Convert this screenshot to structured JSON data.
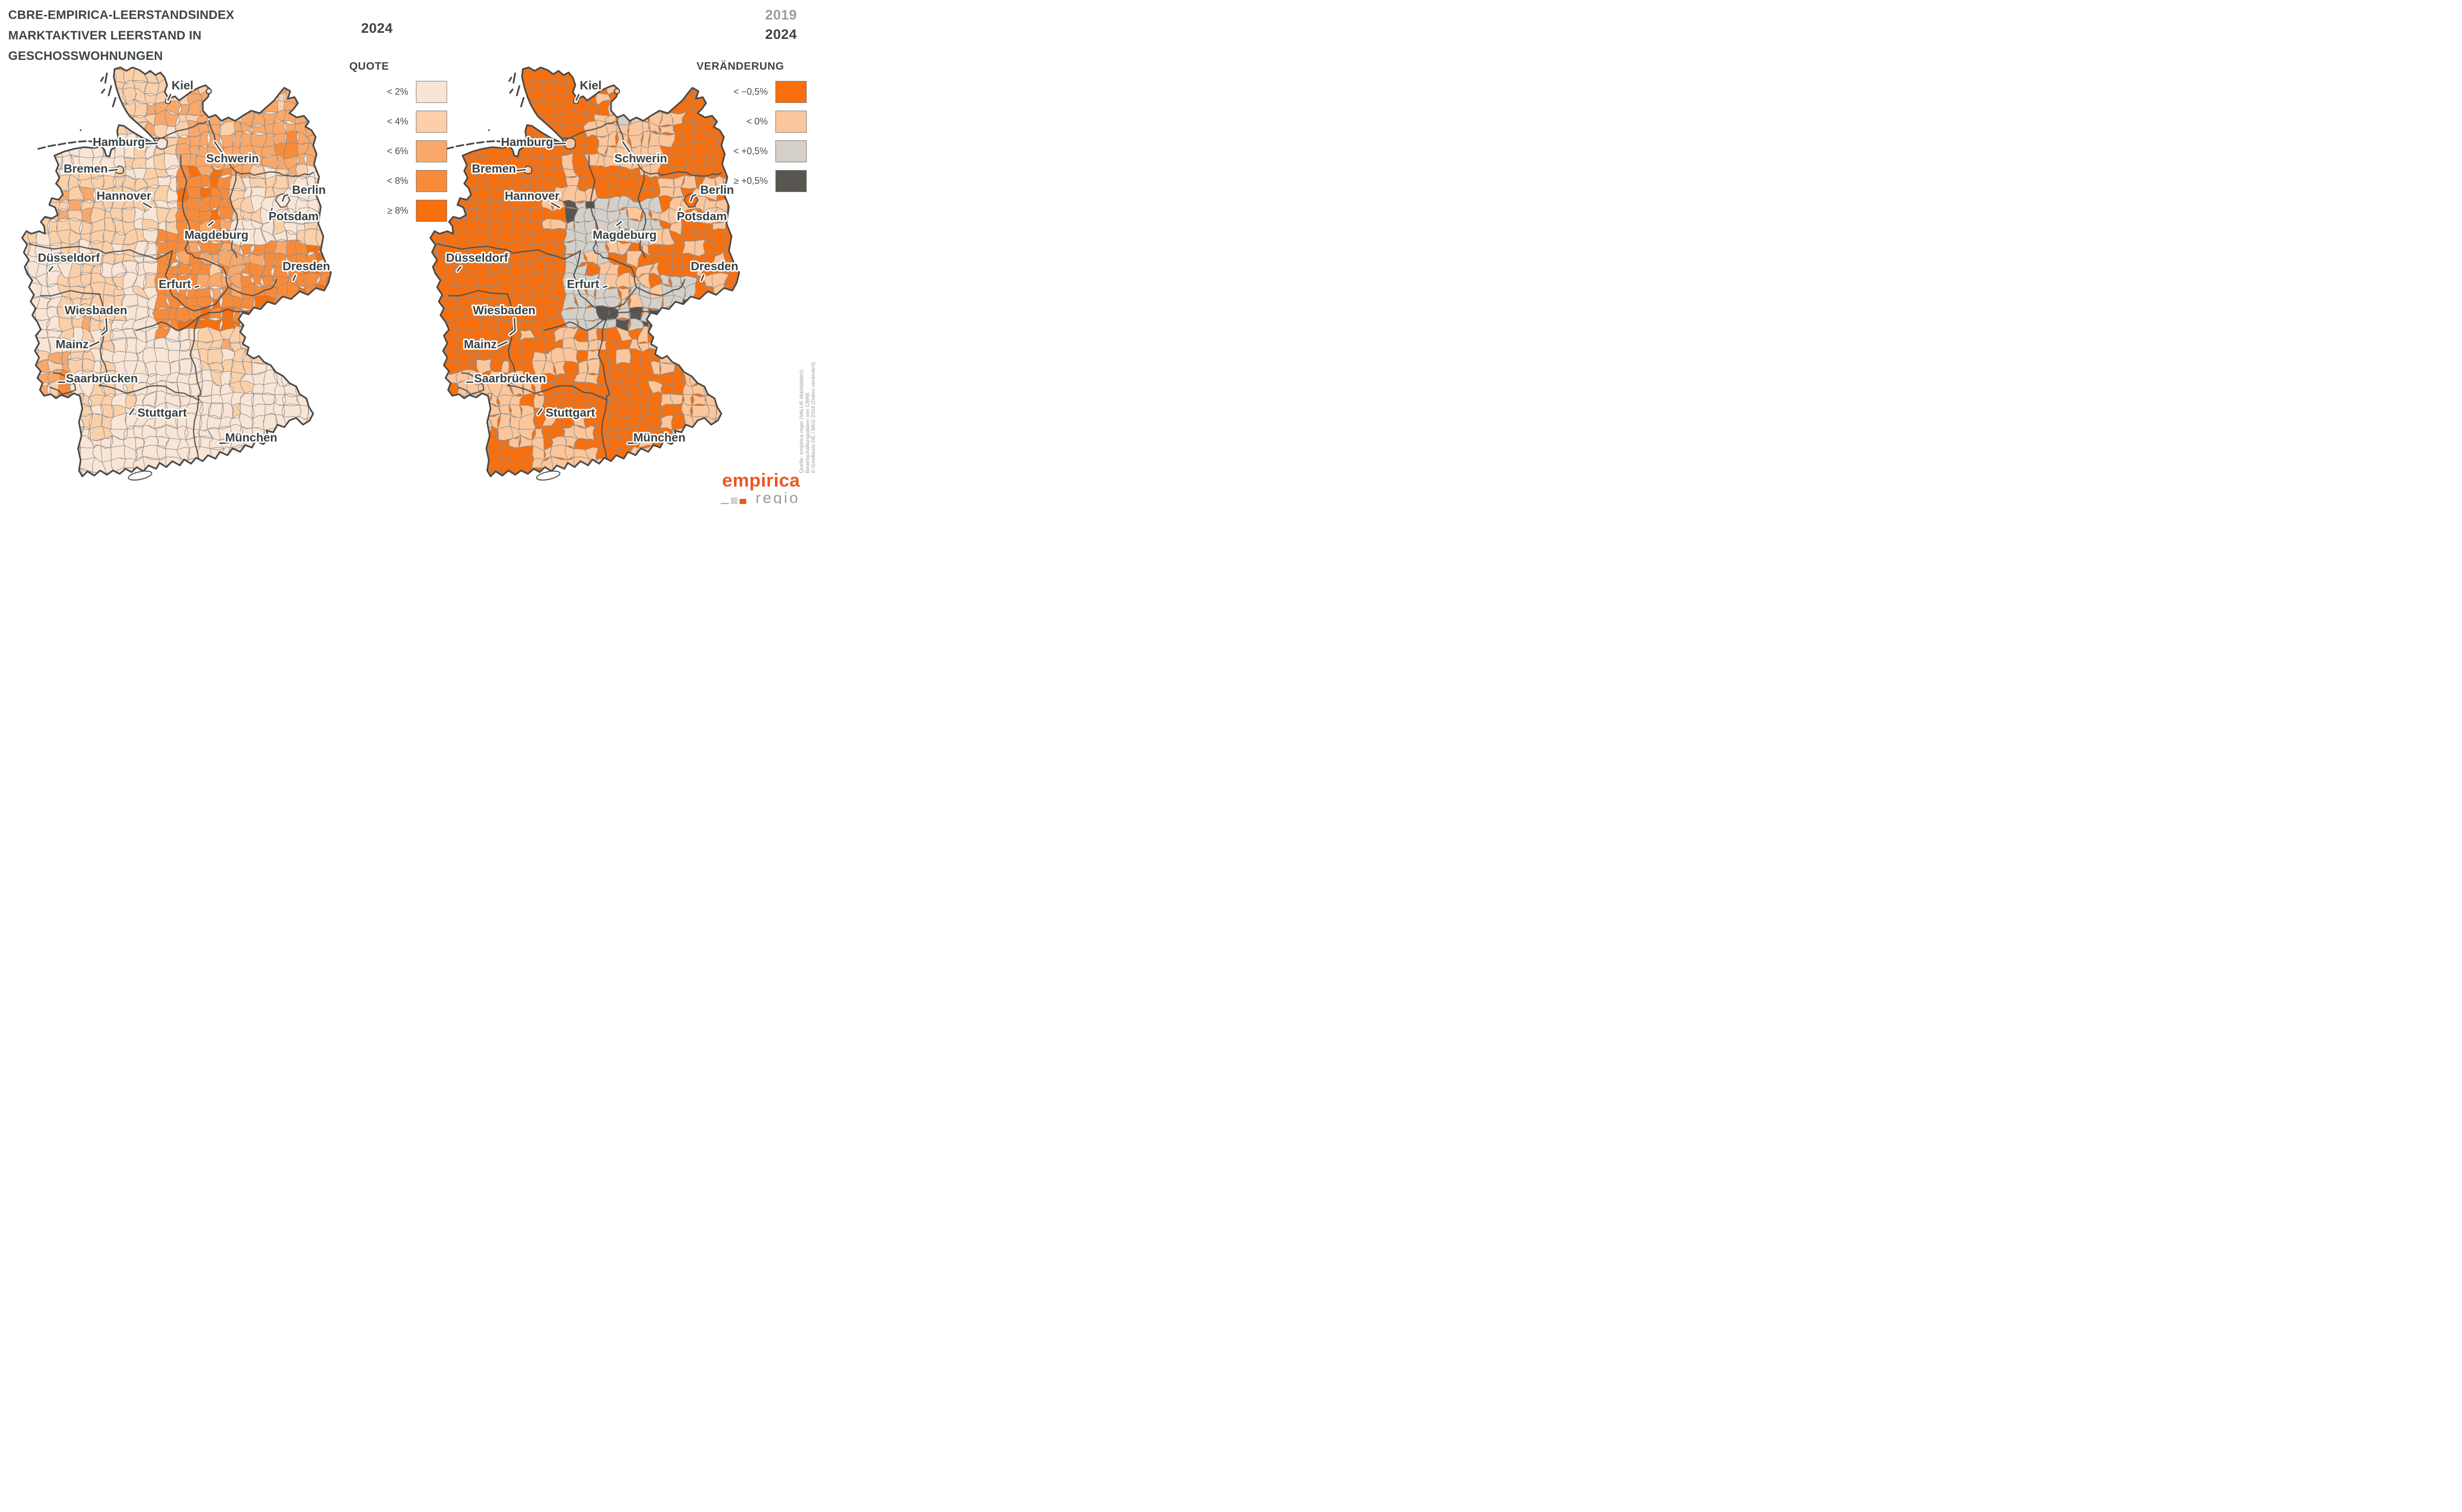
{
  "title": {
    "line1": "CBRE-EMPIRICA-LEERSTANDSINDEX",
    "line2": "MARKTAKTIVER LEERSTAND IN",
    "line3": "GESCHOSSWOHNUNGEN"
  },
  "left_panel": {
    "year": "2024",
    "legend_title": "QUOTE",
    "classes": [
      {
        "label": "< 2%",
        "color": "#f9e5d5"
      },
      {
        "label": "< 4%",
        "color": "#fbd0a9"
      },
      {
        "label": "< 6%",
        "color": "#f9a86a"
      },
      {
        "label": "< 8%",
        "color": "#f88b3a"
      },
      {
        "label": "≥ 8%",
        "color": "#f76f0e"
      }
    ]
  },
  "right_panel": {
    "year_prev": "2019",
    "year": "2024",
    "legend_title": "VERÄNDERUNG",
    "classes": [
      {
        "label": "< −0,5%",
        "color": "#f76f0e"
      },
      {
        "label": "< 0%",
        "color": "#fbc69c"
      },
      {
        "label": "< +0,5%",
        "color": "#d4cfc9"
      },
      {
        "label": "≥ +0,5%",
        "color": "#595551"
      }
    ]
  },
  "cities": [
    "Kiel",
    "Hamburg",
    "Schwerin",
    "Bremen",
    "Hannover",
    "Berlin",
    "Potsdam",
    "Magdeburg",
    "Düsseldorf",
    "Dresden",
    "Erfurt",
    "Wiesbaden",
    "Mainz",
    "Saarbrücken",
    "Stuttgart",
    "München"
  ],
  "source_lines": [
    "Quelle: empirica regio (VALUE Marktdaten);",
    "Bewirtschaftungsdaten von CBRE",
    "© GeoBasis-DE / BKG 2024 (Daten verändert)"
  ],
  "logo": {
    "primary": "empirica",
    "secondary": "regio"
  },
  "palette": {
    "title_text": "#3e4546",
    "muted_text": "#9c9c9c",
    "city_label": "#3a4142",
    "district_border": "#8d8d8d",
    "state_border": "#4e4e4e",
    "country_border": "#484848",
    "halo": "#ffffff",
    "logo_orange": "#eb5724",
    "logo_gray": "#9a9a9a"
  }
}
